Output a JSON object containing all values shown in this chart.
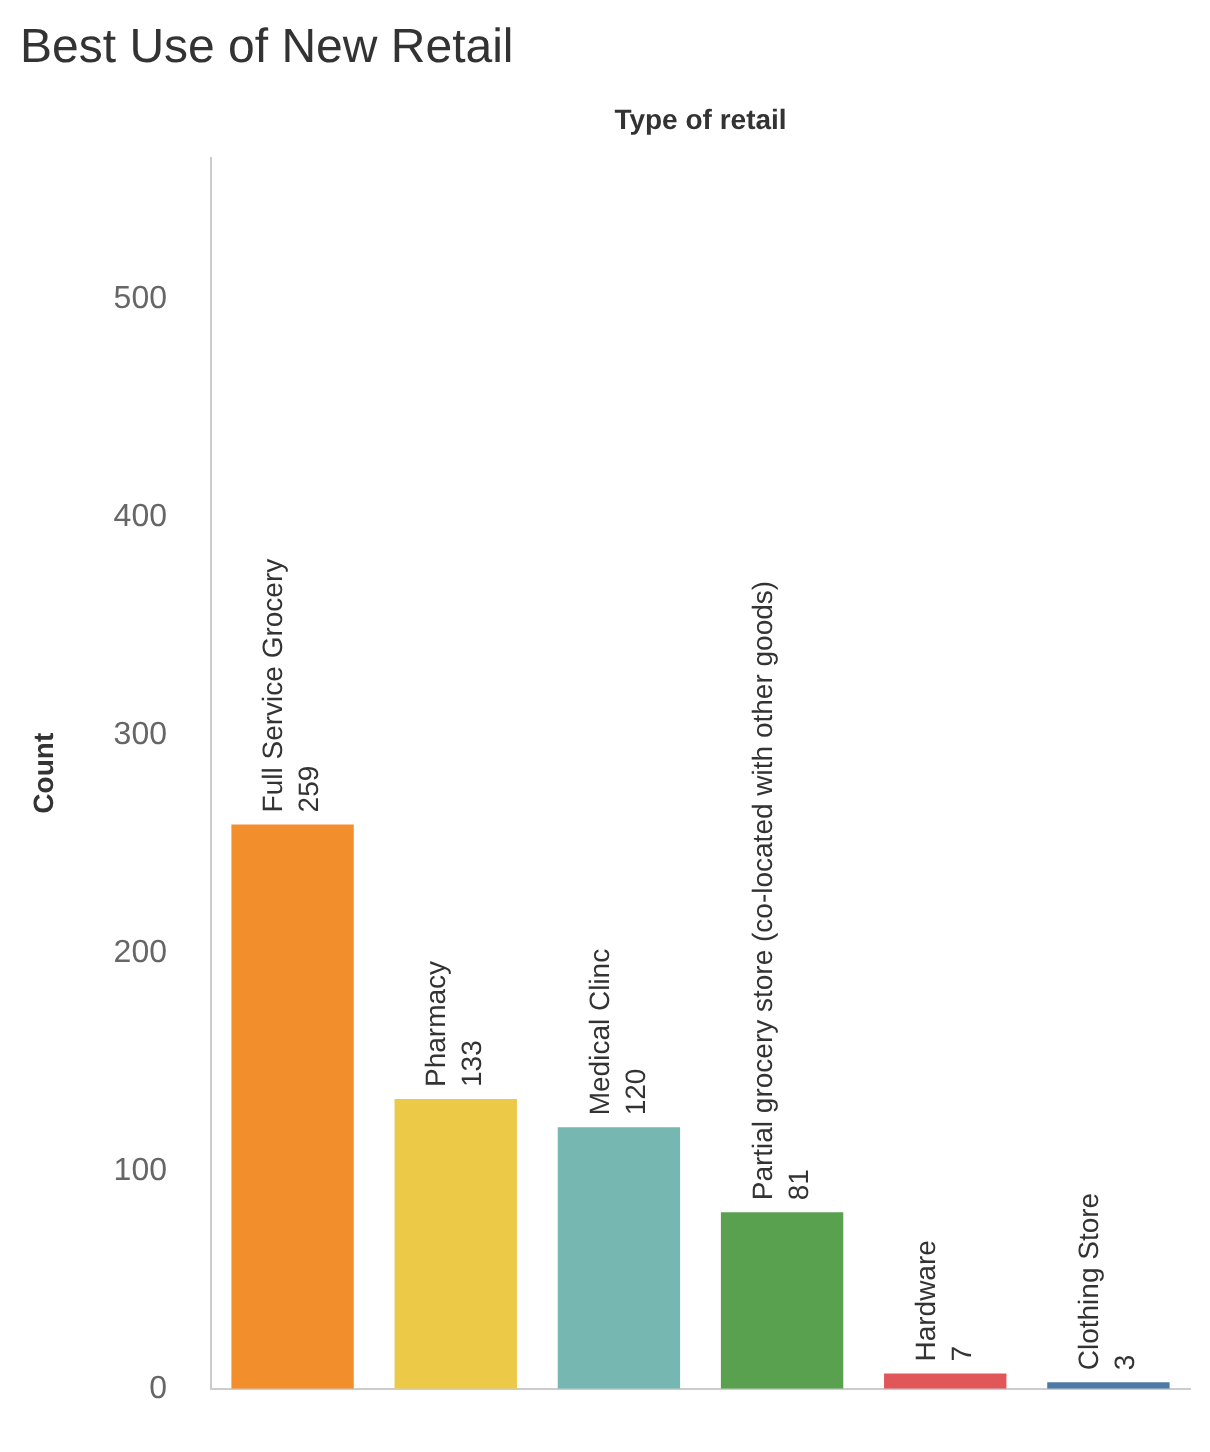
{
  "chart_data": {
    "type": "bar",
    "title": "Best Use of New Retail",
    "xlabel": "Type of retail",
    "ylabel": "Count",
    "categories": [
      "Full Service Grocery",
      "Pharmacy",
      "Medical Clinc",
      "Partial grocery store (co-located with other goods)",
      "Hardware",
      "Clothing Store"
    ],
    "values": [
      259,
      133,
      120,
      81,
      7,
      3
    ],
    "colors": [
      "#f28e2b",
      "#edc948",
      "#76b7b2",
      "#59a14f",
      "#e15759",
      "#4e79a7"
    ],
    "ylim": [
      0,
      565
    ],
    "yticks": [
      0,
      100,
      200,
      300,
      400,
      500
    ],
    "grid": false,
    "data_labels": true,
    "legend": false
  }
}
